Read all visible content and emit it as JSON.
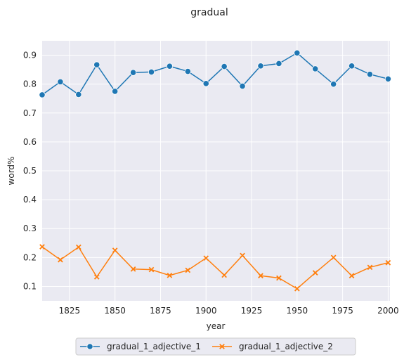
{
  "chart_data": {
    "type": "line",
    "title": "gradual",
    "xlabel": "year",
    "ylabel": "word%",
    "xlim": [
      1810,
      2001
    ],
    "ylim": [
      0.05,
      0.95
    ],
    "xticks": [
      1825,
      1850,
      1875,
      1900,
      1925,
      1950,
      1975,
      2000
    ],
    "yticks": [
      0.1,
      0.2,
      0.3,
      0.4,
      0.5,
      0.6,
      0.7,
      0.8,
      0.9
    ],
    "grid": true,
    "legend_position": "bottom-center",
    "x": [
      1810,
      1820,
      1830,
      1840,
      1850,
      1860,
      1870,
      1880,
      1890,
      1900,
      1910,
      1920,
      1930,
      1940,
      1950,
      1960,
      1970,
      1980,
      1990,
      2000
    ],
    "series": [
      {
        "name": "gradual_1_adjective_1",
        "color": "#1f77b4",
        "marker": "circle",
        "values": [
          0.763,
          0.808,
          0.764,
          0.867,
          0.775,
          0.84,
          0.842,
          0.862,
          0.844,
          0.802,
          0.861,
          0.793,
          0.863,
          0.871,
          0.908,
          0.853,
          0.8,
          0.863,
          0.834,
          0.818
        ]
      },
      {
        "name": "gradual_1_adjective_2",
        "color": "#ff7f0e",
        "marker": "x",
        "values": [
          0.237,
          0.192,
          0.236,
          0.133,
          0.225,
          0.16,
          0.158,
          0.138,
          0.156,
          0.198,
          0.139,
          0.207,
          0.137,
          0.129,
          0.092,
          0.147,
          0.2,
          0.137,
          0.166,
          0.182
        ]
      }
    ]
  }
}
